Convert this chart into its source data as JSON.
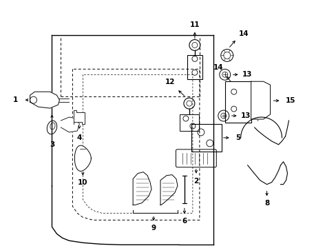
{
  "background_color": "#ffffff",
  "figsize": [
    4.89,
    3.6
  ],
  "dpi": 100,
  "lw": 1.0,
  "color": "#000000"
}
